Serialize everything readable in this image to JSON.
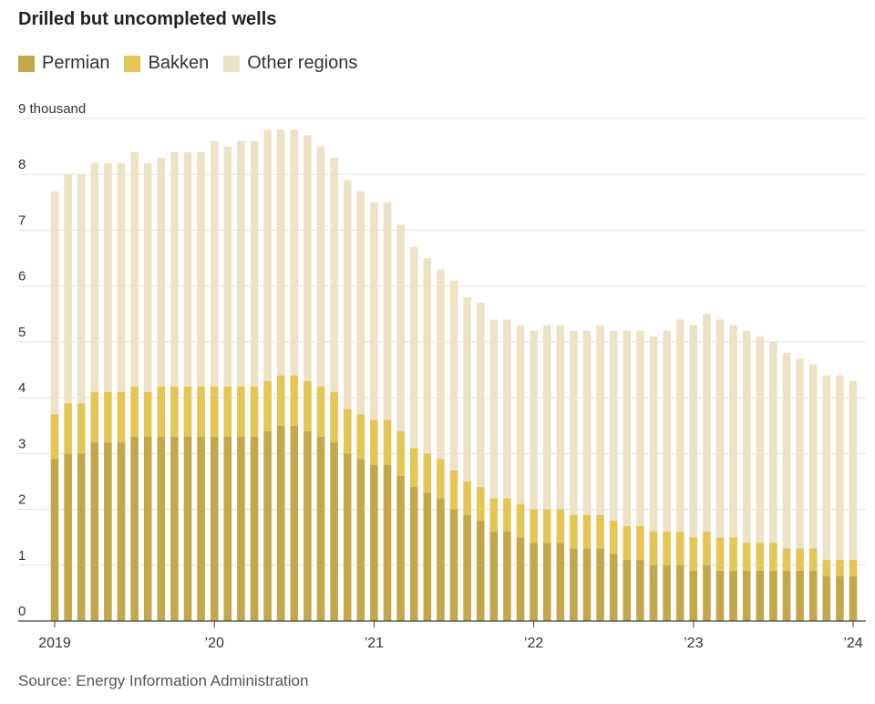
{
  "chart_data": {
    "type": "bar",
    "stacked": true,
    "title": "Drilled but uncompleted wells",
    "source": "Source: Energy Information Administration",
    "ylim": [
      0,
      9
    ],
    "y_ticks": [
      {
        "value": 0,
        "label": "0"
      },
      {
        "value": 1,
        "label": "1"
      },
      {
        "value": 2,
        "label": "2"
      },
      {
        "value": 3,
        "label": "3"
      },
      {
        "value": 4,
        "label": "4"
      },
      {
        "value": 5,
        "label": "5"
      },
      {
        "value": 6,
        "label": "6"
      },
      {
        "value": 7,
        "label": "7"
      },
      {
        "value": 8,
        "label": "8"
      },
      {
        "value": 9,
        "label": "9 thousand"
      }
    ],
    "x_ticks": [
      {
        "index": 0,
        "label": "2019"
      },
      {
        "index": 12,
        "label": "’20"
      },
      {
        "index": 24,
        "label": "’21"
      },
      {
        "index": 36,
        "label": "’22"
      },
      {
        "index": 48,
        "label": "’23"
      },
      {
        "index": 60,
        "label": "’24"
      }
    ],
    "categories": [
      "2019-01",
      "2019-02",
      "2019-03",
      "2019-04",
      "2019-05",
      "2019-06",
      "2019-07",
      "2019-08",
      "2019-09",
      "2019-10",
      "2019-11",
      "2019-12",
      "2020-01",
      "2020-02",
      "2020-03",
      "2020-04",
      "2020-05",
      "2020-06",
      "2020-07",
      "2020-08",
      "2020-09",
      "2020-10",
      "2020-11",
      "2020-12",
      "2021-01",
      "2021-02",
      "2021-03",
      "2021-04",
      "2021-05",
      "2021-06",
      "2021-07",
      "2021-08",
      "2021-09",
      "2021-10",
      "2021-11",
      "2021-12",
      "2022-01",
      "2022-02",
      "2022-03",
      "2022-04",
      "2022-05",
      "2022-06",
      "2022-07",
      "2022-08",
      "2022-09",
      "2022-10",
      "2022-11",
      "2022-12",
      "2023-01",
      "2023-02",
      "2023-03",
      "2023-04",
      "2023-05",
      "2023-06",
      "2023-07",
      "2023-08",
      "2023-09",
      "2023-10",
      "2023-11",
      "2023-12",
      "2024-01"
    ],
    "series": [
      {
        "name": "Permian",
        "color": "#c2a84a",
        "values": [
          2.9,
          3.0,
          3.0,
          3.2,
          3.2,
          3.2,
          3.3,
          3.3,
          3.3,
          3.3,
          3.3,
          3.3,
          3.3,
          3.3,
          3.3,
          3.3,
          3.4,
          3.5,
          3.5,
          3.4,
          3.3,
          3.2,
          3.0,
          2.9,
          2.8,
          2.8,
          2.6,
          2.4,
          2.3,
          2.2,
          2.0,
          1.9,
          1.8,
          1.6,
          1.6,
          1.5,
          1.4,
          1.4,
          1.4,
          1.3,
          1.3,
          1.3,
          1.2,
          1.1,
          1.1,
          1.0,
          1.0,
          1.0,
          0.9,
          1.0,
          0.9,
          0.9,
          0.9,
          0.9,
          0.9,
          0.9,
          0.9,
          0.9,
          0.8,
          0.8,
          0.8
        ]
      },
      {
        "name": "Bakken",
        "color": "#e3c653",
        "values": [
          0.8,
          0.9,
          0.9,
          0.9,
          0.9,
          0.9,
          0.9,
          0.8,
          0.9,
          0.9,
          0.9,
          0.9,
          0.9,
          0.9,
          0.9,
          0.9,
          0.9,
          0.9,
          0.9,
          0.9,
          0.9,
          0.9,
          0.8,
          0.8,
          0.8,
          0.8,
          0.8,
          0.7,
          0.7,
          0.7,
          0.7,
          0.6,
          0.6,
          0.6,
          0.6,
          0.6,
          0.6,
          0.6,
          0.6,
          0.6,
          0.6,
          0.6,
          0.6,
          0.6,
          0.6,
          0.6,
          0.6,
          0.6,
          0.6,
          0.6,
          0.6,
          0.6,
          0.5,
          0.5,
          0.5,
          0.4,
          0.4,
          0.4,
          0.3,
          0.3,
          0.3
        ]
      },
      {
        "name": "Other regions",
        "color": "#ece3c6",
        "values": [
          4.0,
          4.1,
          4.1,
          4.1,
          4.1,
          4.1,
          4.2,
          4.1,
          4.1,
          4.2,
          4.2,
          4.2,
          4.4,
          4.3,
          4.4,
          4.4,
          4.5,
          4.4,
          4.4,
          4.4,
          4.3,
          4.2,
          4.1,
          4.0,
          3.9,
          3.9,
          3.7,
          3.6,
          3.5,
          3.4,
          3.4,
          3.3,
          3.3,
          3.2,
          3.2,
          3.2,
          3.2,
          3.3,
          3.3,
          3.3,
          3.3,
          3.4,
          3.4,
          3.5,
          3.5,
          3.5,
          3.6,
          3.8,
          3.8,
          3.9,
          3.9,
          3.8,
          3.8,
          3.7,
          3.6,
          3.5,
          3.4,
          3.3,
          3.3,
          3.3,
          3.2
        ]
      }
    ]
  }
}
